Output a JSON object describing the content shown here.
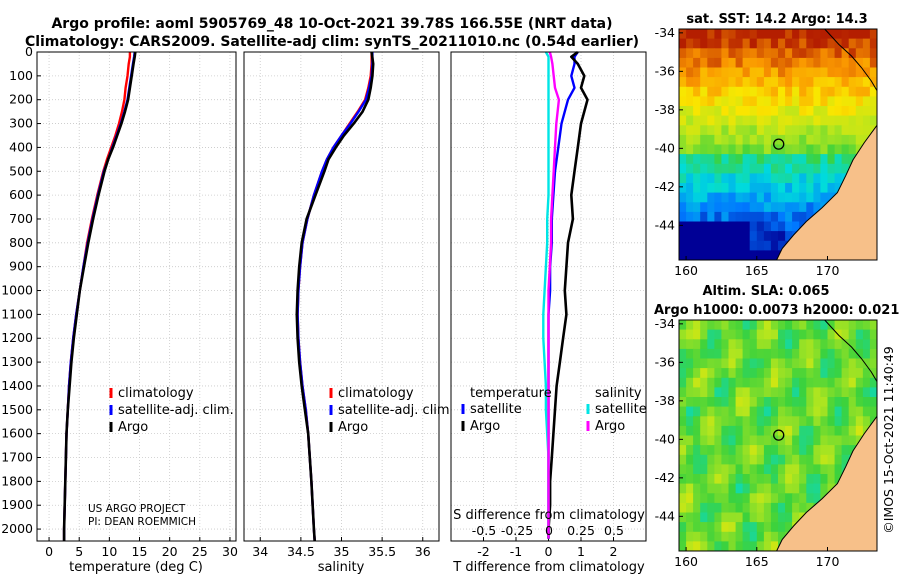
{
  "header": {
    "line1": "Argo profile: aoml 5905769_48 10-Oct-2021 39.78S 166.55E (NRT data)",
    "line2": "Climatology: CARS2009. Satellite-adj clim: synTS_20211010.nc (0.54d earlier)"
  },
  "credits": {
    "project": "US ARGO PROJECT",
    "pi": "PI: DEAN ROEMMICH",
    "imos": "©IMOS 15-Oct-2021 11:40:49"
  },
  "colors": {
    "climatology": "#ff0000",
    "satellite": "#0000ff",
    "argo": "#000000",
    "sal_sat": "#00e5e5",
    "sal_argo": "#ff00ff",
    "land": "#f7c089"
  },
  "chart_data": [
    {
      "type": "line",
      "panel": "temperature",
      "xlabel": "temperature (deg C)",
      "ylabel": "",
      "xlim": [
        -2,
        31
      ],
      "ylim": [
        2050,
        0
      ],
      "xticks": [
        0,
        5,
        10,
        15,
        20,
        25,
        30
      ],
      "yticks": [
        0,
        100,
        200,
        300,
        400,
        500,
        600,
        700,
        800,
        900,
        1000,
        1100,
        1200,
        1300,
        1400,
        1500,
        1600,
        1700,
        1800,
        1900,
        2000
      ],
      "legend": [
        "climatology",
        "satellite-adj. clim.",
        "Argo"
      ],
      "depth": [
        0,
        20,
        50,
        100,
        150,
        200,
        250,
        300,
        350,
        400,
        450,
        500,
        600,
        700,
        800,
        900,
        1000,
        1100,
        1200,
        1300,
        1400,
        1500,
        1600,
        1700,
        1800,
        1900,
        2000,
        2050
      ],
      "series": [
        {
          "name": "climatology",
          "color": "#ff0000",
          "values": [
            13.4,
            13.4,
            13.2,
            13.0,
            12.7,
            12.5,
            12.1,
            11.6,
            11.0,
            10.3,
            9.6,
            9.0,
            8.0,
            7.1,
            6.3,
            5.7,
            5.1,
            4.5,
            4.0,
            3.6,
            3.3,
            3.1,
            2.9,
            2.8,
            2.7,
            2.6,
            2.5,
            2.5
          ]
        },
        {
          "name": "satellite-adj. clim.",
          "color": "#0000ff",
          "values": [
            14.2,
            14.1,
            13.9,
            13.6,
            13.3,
            13.0,
            12.5,
            11.9,
            11.2,
            10.5,
            9.8,
            9.1,
            8.1,
            7.2,
            6.4,
            5.7,
            5.1,
            4.5,
            4.0,
            3.6,
            3.3,
            3.1,
            2.9,
            2.8,
            2.7,
            2.6,
            2.5,
            2.5
          ]
        },
        {
          "name": "Argo",
          "color": "#000000",
          "values": [
            14.3,
            14.2,
            14.0,
            13.7,
            13.4,
            13.1,
            12.6,
            12.0,
            11.3,
            10.6,
            9.8,
            9.2,
            8.2,
            7.3,
            6.5,
            5.8,
            5.1,
            4.6,
            4.1,
            3.7,
            3.4,
            3.1,
            2.9,
            2.8,
            2.7,
            2.6,
            2.5,
            2.5
          ]
        }
      ]
    },
    {
      "type": "line",
      "panel": "salinity",
      "xlabel": "salinity",
      "xlim": [
        33.8,
        36.2
      ],
      "ylim": [
        2050,
        0
      ],
      "xticks": [
        34,
        34.5,
        35,
        35.5,
        36
      ],
      "xticklabels": [
        "34",
        "34.5",
        "35",
        "35.5",
        "36"
      ],
      "legend": [
        "climatology",
        "satellite-adj. clim.",
        "Argo"
      ],
      "depth": [
        0,
        50,
        100,
        150,
        200,
        250,
        300,
        350,
        400,
        450,
        500,
        600,
        700,
        800,
        900,
        1000,
        1100,
        1200,
        1300,
        1400,
        1500,
        1600,
        1800,
        2000,
        2050
      ],
      "series": [
        {
          "name": "climatology",
          "color": "#ff0000",
          "values": [
            35.37,
            35.37,
            35.36,
            35.33,
            35.29,
            35.2,
            35.1,
            35.0,
            34.9,
            34.82,
            34.76,
            34.66,
            34.58,
            34.52,
            34.49,
            34.47,
            34.46,
            34.47,
            34.49,
            34.52,
            34.56,
            34.59,
            34.63,
            34.66,
            34.67
          ]
        },
        {
          "name": "satellite-adj. clim.",
          "color": "#0000ff",
          "values": [
            35.38,
            35.38,
            35.37,
            35.34,
            35.3,
            35.21,
            35.11,
            35.0,
            34.9,
            34.82,
            34.76,
            34.66,
            34.58,
            34.52,
            34.49,
            34.47,
            34.46,
            34.47,
            34.49,
            34.52,
            34.56,
            34.59,
            34.63,
            34.66,
            34.67
          ]
        },
        {
          "name": "Argo",
          "color": "#000000",
          "values": [
            35.37,
            35.39,
            35.38,
            35.36,
            35.33,
            35.26,
            35.15,
            35.03,
            34.93,
            34.84,
            34.79,
            34.68,
            34.57,
            34.51,
            34.48,
            34.46,
            34.45,
            34.46,
            34.48,
            34.51,
            34.55,
            34.59,
            34.63,
            34.66,
            34.67
          ]
        }
      ]
    },
    {
      "type": "line",
      "panel": "difference",
      "xlabel": "T difference from climatology",
      "xlabel_top": "S difference from climatology",
      "xlim": [
        -3,
        3
      ],
      "ylim": [
        2050,
        0
      ],
      "xticks": [
        -2,
        -1,
        0,
        1,
        2
      ],
      "xticklabels": [
        "-2",
        "-1",
        "0",
        "1",
        "2"
      ],
      "sticks": [
        "-0.5",
        "-0.25",
        "0",
        "0.25",
        "0.5"
      ],
      "legend_temperature": {
        "title": "temperature",
        "items": [
          "satellite",
          "Argo"
        ]
      },
      "legend_salinity": {
        "title": "salinity",
        "items": [
          "satellite",
          "Argo"
        ]
      },
      "depth": [
        0,
        20,
        50,
        100,
        150,
        200,
        300,
        400,
        500,
        600,
        700,
        800,
        900,
        1000,
        1100,
        1200,
        1300,
        1400,
        1500,
        1600,
        1700,
        1800,
        1900,
        2000,
        2040
      ],
      "series": [
        {
          "name": "T satellite",
          "color": "#0000ff",
          "values": [
            0.9,
            0.8,
            0.8,
            0.7,
            0.8,
            0.6,
            0.4,
            0.3,
            0.2,
            0.15,
            0.1,
            0.1,
            0.05,
            0.05,
            0.0,
            0.0,
            0.0,
            0.0,
            0.0,
            0.0,
            0.0,
            0.0,
            0.0,
            0.0,
            0.0
          ]
        },
        {
          "name": "T Argo",
          "color": "#000000",
          "values": [
            0.9,
            0.7,
            0.9,
            1.1,
            1.0,
            1.2,
            1.0,
            0.9,
            0.8,
            0.7,
            0.75,
            0.6,
            0.55,
            0.5,
            0.55,
            0.45,
            0.35,
            0.25,
            0.2,
            0.15,
            0.1,
            0.05,
            0.05,
            0.0,
            0.0
          ]
        },
        {
          "name": "S satellite",
          "color": "#00e5e5",
          "values": [
            -0.02,
            0.0,
            0.0,
            0.0,
            0.0,
            0.0,
            0.0,
            0.0,
            0.0,
            0.0,
            -0.01,
            -0.01,
            -0.02,
            -0.03,
            -0.04,
            -0.04,
            -0.03,
            -0.02,
            -0.02,
            -0.01,
            0.0,
            0.0,
            0.0,
            0.0,
            0.0
          ]
        },
        {
          "name": "S Argo",
          "color": "#ff00ff",
          "values": [
            0.01,
            0.02,
            0.03,
            0.04,
            0.05,
            0.08,
            0.06,
            0.05,
            0.04,
            0.03,
            0.02,
            0.02,
            0.01,
            0.0,
            0.0,
            0.0,
            0.0,
            0.0,
            0.0,
            0.0,
            0.0,
            0.0,
            0.0,
            0.0,
            0.0
          ]
        }
      ]
    },
    {
      "type": "heatmap",
      "panel": "map-sst",
      "title": "sat. SST: 14.2 Argo: 14.3",
      "xlim": [
        159.5,
        173.5
      ],
      "ylim": [
        -45.8,
        -33.8
      ],
      "xticks": [
        160,
        165,
        170
      ],
      "yticks": [
        -34,
        -36,
        -38,
        -40,
        -42,
        -44
      ],
      "float_position": [
        166.55,
        -39.78
      ]
    },
    {
      "type": "heatmap",
      "panel": "map-sla",
      "title_line1": "Altim. SLA: 0.065",
      "title_line2": "Argo h1000: 0.0073 h2000: 0.021",
      "xlim": [
        159.5,
        173.5
      ],
      "ylim": [
        -45.8,
        -33.8
      ],
      "xticks": [
        160,
        165,
        170
      ],
      "yticks": [
        -34,
        -36,
        -38,
        -40,
        -42,
        -44
      ],
      "float_position": [
        166.55,
        -39.78
      ]
    }
  ]
}
